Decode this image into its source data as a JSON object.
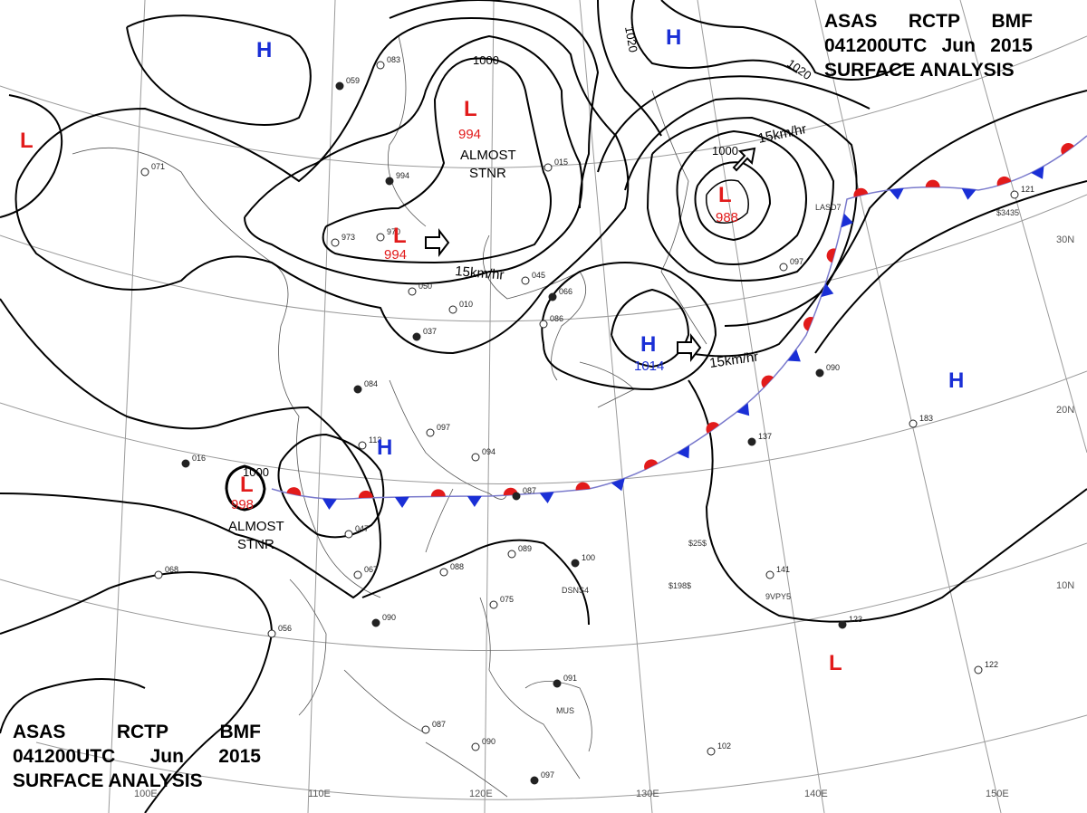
{
  "title": {
    "line1": [
      "ASAS",
      "RCTP",
      "BMF"
    ],
    "line2": [
      "041200UTC",
      "Jun",
      "2015"
    ],
    "line3": "SURFACE ANALYSIS"
  },
  "colors": {
    "high": "#1a2fd6",
    "low": "#e21b1b",
    "isobar": "#000000",
    "grid": "#9a9a9a",
    "coast": "#555555",
    "front_line": "#7a7acc"
  },
  "symbols": {
    "high": "H",
    "low": "L"
  },
  "isobar_labels": [
    "1000",
    "1000",
    "1000",
    "1020",
    "1020"
  ],
  "pressure_centers": [
    {
      "type": "L",
      "value": "994"
    },
    {
      "type": "L",
      "value": "994"
    },
    {
      "type": "L",
      "value": "988"
    },
    {
      "type": "L",
      "value": "998"
    },
    {
      "type": "H",
      "value": "1014"
    },
    {
      "type": "H",
      "value": ""
    },
    {
      "type": "H",
      "value": ""
    },
    {
      "type": "H",
      "value": ""
    },
    {
      "type": "H",
      "value": ""
    },
    {
      "type": "L",
      "value": ""
    },
    {
      "type": "L",
      "value": ""
    }
  ],
  "annotations": [
    "ALMOST",
    "STNR",
    "ALMOST",
    "STNR"
  ],
  "movements": [
    "15km/hr",
    "15km/hr",
    "15km/hr"
  ],
  "latitude_labels": [
    "30N",
    "20N",
    "10N"
  ],
  "longitude_labels": [
    "100E",
    "110E",
    "120E",
    "130E",
    "140E",
    "150E"
  ],
  "station_labels": [
    "LASD7",
    "DSNS4",
    "$198$",
    "$25$",
    "$3435",
    "9VPY5",
    "MUS"
  ],
  "station_numbers": [
    "994",
    "970",
    "973",
    "037",
    "050",
    "010",
    "084",
    "097",
    "094",
    "087",
    "089",
    "088",
    "100",
    "067",
    "047",
    "090",
    "056",
    "075",
    "016",
    "068",
    "083",
    "059",
    "071",
    "086",
    "066",
    "045",
    "015",
    "137",
    "183",
    "141",
    "123",
    "122",
    "102",
    "091",
    "087",
    "090",
    "097",
    "121",
    "097",
    "090",
    "113"
  ]
}
